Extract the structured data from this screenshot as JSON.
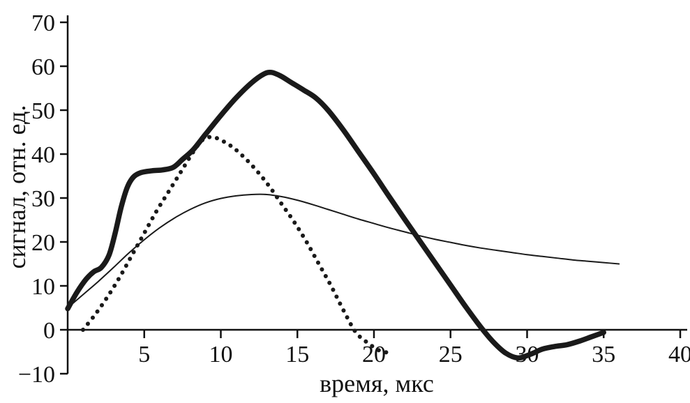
{
  "figure": {
    "title": "",
    "background": "#ffffff",
    "ink_color": "#1a1a1a"
  },
  "chart_data": {
    "type": "line",
    "title": "",
    "xlabel": "время, мкс",
    "ylabel": "сигнал, отн. ед.",
    "xlim": [
      0,
      40
    ],
    "ylim": [
      -10,
      70
    ],
    "x_ticks": [
      5,
      10,
      15,
      20,
      25,
      30,
      35,
      40
    ],
    "y_ticks": [
      -10,
      0,
      10,
      20,
      30,
      40,
      50,
      60,
      70
    ],
    "grid": false,
    "legend_position": "none",
    "color": "#1a1a1a",
    "series": [
      {
        "name": "bold-solid",
        "style": "solid",
        "stroke_width": 7.5,
        "points": [
          [
            0,
            4.8
          ],
          [
            0.6,
            8.5
          ],
          [
            1.2,
            11.5
          ],
          [
            1.7,
            13.2
          ],
          [
            2.2,
            14.2
          ],
          [
            2.7,
            17
          ],
          [
            3.1,
            22
          ],
          [
            3.5,
            28
          ],
          [
            3.9,
            32.5
          ],
          [
            4.3,
            34.8
          ],
          [
            4.8,
            35.8
          ],
          [
            5.5,
            36.2
          ],
          [
            6.2,
            36.4
          ],
          [
            6.9,
            37
          ],
          [
            7.5,
            38.8
          ],
          [
            8.2,
            41
          ],
          [
            9,
            44.5
          ],
          [
            10,
            48.8
          ],
          [
            11,
            52.8
          ],
          [
            12,
            56.2
          ],
          [
            12.8,
            58.2
          ],
          [
            13.3,
            58.6
          ],
          [
            13.9,
            57.8
          ],
          [
            14.6,
            56.3
          ],
          [
            15.4,
            54.6
          ],
          [
            16.2,
            52.8
          ],
          [
            17,
            50
          ],
          [
            18,
            45.5
          ],
          [
            19,
            40.5
          ],
          [
            20,
            35.5
          ],
          [
            21,
            30.3
          ],
          [
            22,
            25.2
          ],
          [
            23,
            20.2
          ],
          [
            24,
            15.2
          ],
          [
            25,
            10.2
          ],
          [
            26,
            5.2
          ],
          [
            27,
            0.5
          ],
          [
            27.8,
            -2.8
          ],
          [
            28.6,
            -5.3
          ],
          [
            29.4,
            -6.4
          ],
          [
            30.2,
            -5.6
          ],
          [
            31,
            -4.4
          ],
          [
            31.8,
            -3.8
          ],
          [
            32.6,
            -3.4
          ],
          [
            33.4,
            -2.6
          ],
          [
            34.2,
            -1.6
          ],
          [
            35,
            -0.6
          ]
        ]
      },
      {
        "name": "dotted",
        "style": "dotted",
        "stroke_width": 6,
        "points": [
          [
            1,
            0
          ],
          [
            1.8,
            3.5
          ],
          [
            2.6,
            7.5
          ],
          [
            3.4,
            12
          ],
          [
            4.2,
            17
          ],
          [
            5,
            22
          ],
          [
            5.8,
            27
          ],
          [
            6.6,
            31.5
          ],
          [
            7.4,
            36
          ],
          [
            8.2,
            40.5
          ],
          [
            8.8,
            43.2
          ],
          [
            9.4,
            43.9
          ],
          [
            10,
            43.2
          ],
          [
            10.8,
            41.5
          ],
          [
            11.6,
            39
          ],
          [
            12.4,
            36
          ],
          [
            13.2,
            32.5
          ],
          [
            14,
            28.5
          ],
          [
            14.8,
            24.5
          ],
          [
            15.6,
            20
          ],
          [
            16.4,
            15
          ],
          [
            17.2,
            10
          ],
          [
            18,
            4.5
          ],
          [
            18.8,
            -0.5
          ],
          [
            19.6,
            -3
          ],
          [
            20.4,
            -4.8
          ],
          [
            21,
            -5.2
          ]
        ]
      },
      {
        "name": "thin-solid",
        "style": "solid",
        "stroke_width": 2,
        "points": [
          [
            0,
            5
          ],
          [
            1,
            8
          ],
          [
            2,
            11
          ],
          [
            3,
            14.2
          ],
          [
            4,
            17.5
          ],
          [
            5,
            20.5
          ],
          [
            6,
            23.2
          ],
          [
            7,
            25.5
          ],
          [
            8,
            27.4
          ],
          [
            9,
            28.9
          ],
          [
            10,
            29.9
          ],
          [
            11,
            30.5
          ],
          [
            12,
            30.8
          ],
          [
            13,
            30.8
          ],
          [
            14,
            30.3
          ],
          [
            15,
            29.5
          ],
          [
            16,
            28.5
          ],
          [
            17,
            27.4
          ],
          [
            18,
            26.3
          ],
          [
            19,
            25.2
          ],
          [
            20,
            24.2
          ],
          [
            21,
            23.2
          ],
          [
            22,
            22.3
          ],
          [
            23,
            21.4
          ],
          [
            24,
            20.6
          ],
          [
            25,
            19.9
          ],
          [
            26,
            19.2
          ],
          [
            27,
            18.6
          ],
          [
            28,
            18.1
          ],
          [
            29,
            17.6
          ],
          [
            30,
            17.1
          ],
          [
            31,
            16.7
          ],
          [
            32,
            16.3
          ],
          [
            33,
            15.9
          ],
          [
            34,
            15.6
          ],
          [
            35,
            15.3
          ],
          [
            36,
            15
          ]
        ]
      }
    ]
  }
}
